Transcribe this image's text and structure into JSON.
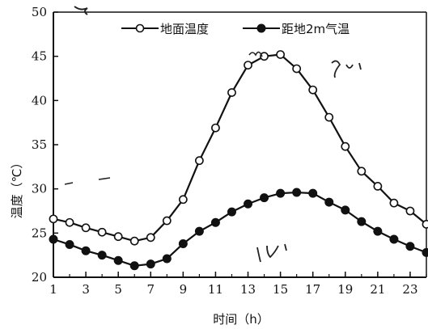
{
  "chart_data": {
    "type": "line",
    "xlabel": "时间（h）",
    "ylabel": "温度（℃）",
    "xlim": [
      1,
      24
    ],
    "ylim": [
      20,
      50
    ],
    "x_ticks": [
      "1",
      "3",
      "5",
      "7",
      "9",
      "11",
      "13",
      "15",
      "17",
      "19",
      "21",
      "23"
    ],
    "y_ticks": [
      "20",
      "25",
      "30",
      "35",
      "40",
      "45",
      "50"
    ],
    "grid": false,
    "legend_placement": "top-right",
    "x": [
      1,
      2,
      3,
      4,
      5,
      6,
      7,
      8,
      9,
      10,
      11,
      12,
      13,
      14,
      15,
      16,
      17,
      18,
      19,
      20,
      21,
      22,
      23,
      24
    ],
    "series": [
      {
        "name": "地面温度",
        "marker": "open-circle",
        "values": [
          26.6,
          26.2,
          25.6,
          25.1,
          24.6,
          24.1,
          24.5,
          26.4,
          28.8,
          33.2,
          36.9,
          40.9,
          44.0,
          45.0,
          45.2,
          43.6,
          41.2,
          38.1,
          34.8,
          32.0,
          30.3,
          28.4,
          27.5,
          26.0
        ]
      },
      {
        "name": "距地2m气温",
        "marker": "filled-circle",
        "values": [
          24.3,
          23.7,
          23.0,
          22.5,
          21.9,
          21.3,
          21.5,
          22.1,
          23.8,
          25.2,
          26.2,
          27.4,
          28.3,
          29.0,
          29.5,
          29.6,
          29.5,
          28.5,
          27.6,
          26.3,
          25.2,
          24.3,
          23.5,
          22.8
        ]
      }
    ]
  },
  "colors": {
    "line": "#111111",
    "open_marker_fill": "#ffffff",
    "filled_marker_fill": "#111111"
  }
}
